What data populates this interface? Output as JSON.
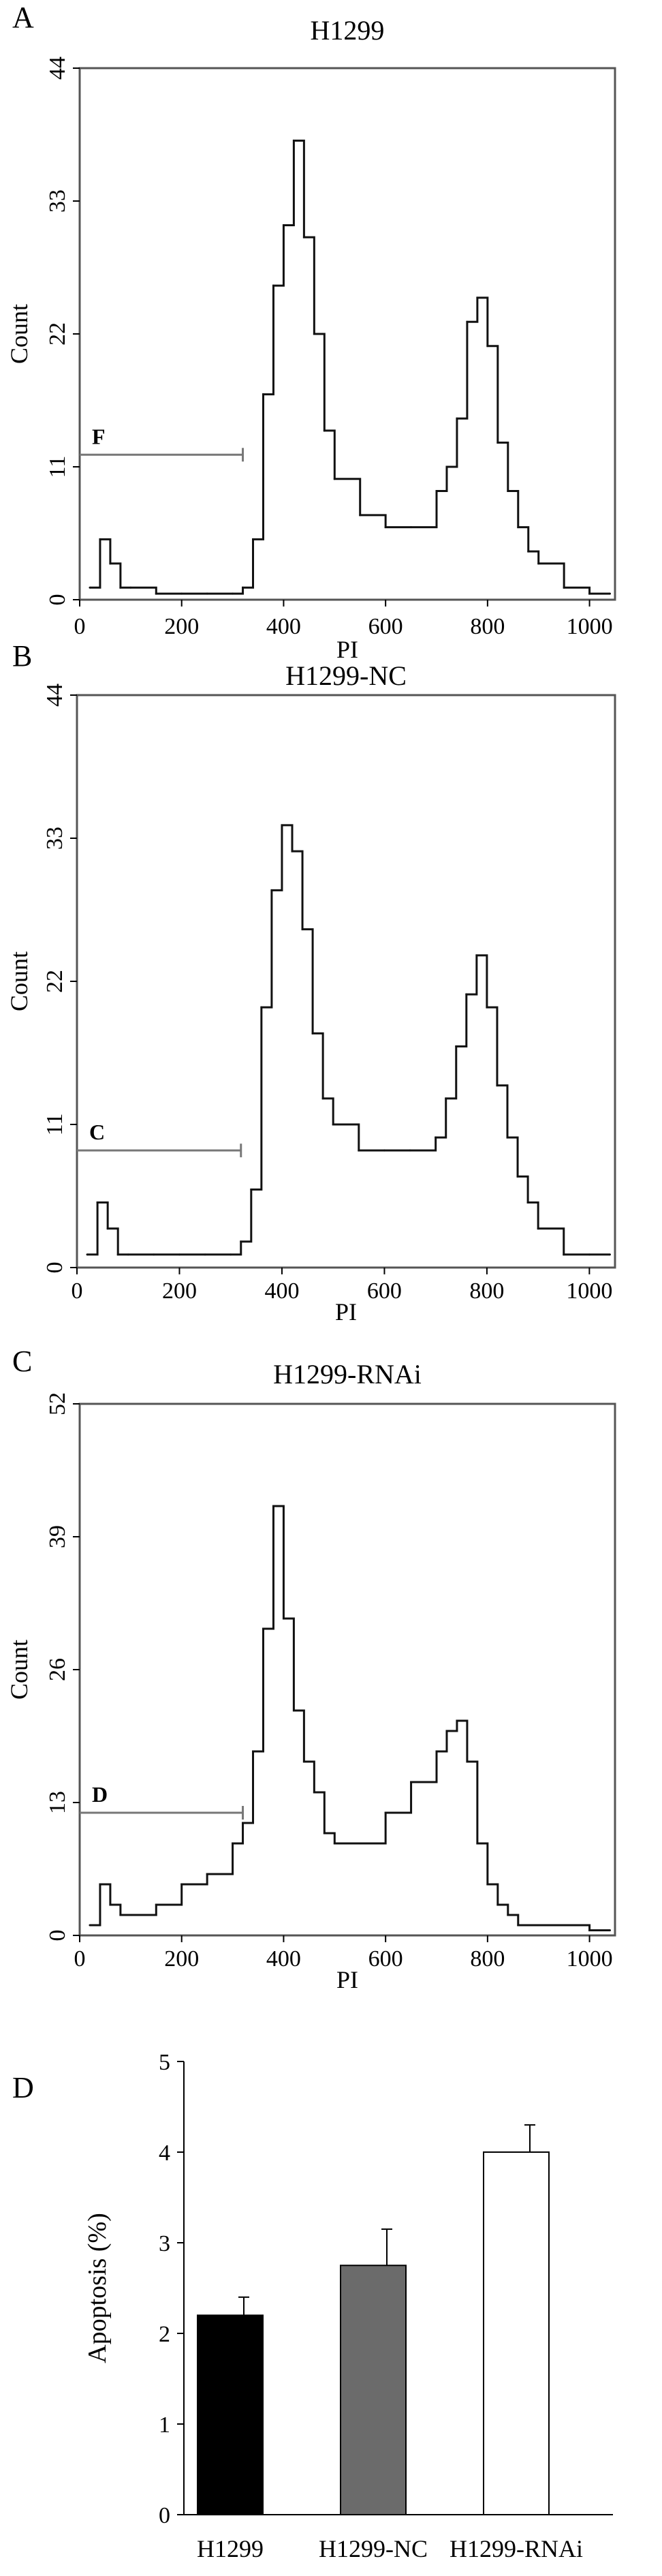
{
  "chart_data": [
    {
      "panel_label": "A",
      "type": "line",
      "title": "H1299",
      "xlabel": "PI",
      "ylabel": "Count",
      "xlim": [
        0,
        1050
      ],
      "ylim": [
        0,
        44
      ],
      "x_ticks": [
        0,
        200,
        400,
        600,
        800,
        1000
      ],
      "y_ticks": [
        0,
        11,
        22,
        33,
        44
      ],
      "gate": {
        "label": "F",
        "x_start": 0,
        "x_end": 320,
        "y": 12
      },
      "series": [
        {
          "x": [
            20,
            40,
            60,
            80,
            100,
            150,
            200,
            250,
            300,
            320,
            340,
            360,
            380,
            400,
            420,
            440,
            460,
            480,
            500,
            550,
            600,
            650,
            700,
            720,
            740,
            760,
            780,
            800,
            820,
            840,
            860,
            880,
            900,
            950,
            1000,
            1040
          ],
          "y": [
            1,
            5,
            3,
            1,
            1,
            0.5,
            0.5,
            0.5,
            0.5,
            1,
            5,
            17,
            26,
            31,
            38,
            30,
            22,
            14,
            10,
            7,
            6,
            6,
            9,
            11,
            15,
            23,
            25,
            21,
            13,
            9,
            6,
            4,
            3,
            1,
            0.5,
            0.5
          ]
        }
      ]
    },
    {
      "panel_label": "B",
      "type": "line",
      "title": "H1299-NC",
      "xlabel": "PI",
      "ylabel": "Count",
      "xlim": [
        0,
        1050
      ],
      "ylim": [
        0,
        44
      ],
      "x_ticks": [
        0,
        200,
        400,
        600,
        800,
        1000
      ],
      "y_ticks": [
        0,
        11,
        22,
        33,
        44
      ],
      "gate": {
        "label": "C",
        "x_start": 0,
        "x_end": 320,
        "y": 9
      },
      "series": [
        {
          "x": [
            20,
            40,
            60,
            80,
            100,
            150,
            200,
            250,
            300,
            320,
            340,
            360,
            380,
            400,
            420,
            440,
            460,
            480,
            500,
            550,
            600,
            650,
            700,
            720,
            740,
            760,
            780,
            800,
            820,
            840,
            860,
            880,
            900,
            950,
            1000,
            1040
          ],
          "y": [
            1,
            5,
            3,
            1,
            1,
            1,
            1,
            1,
            1,
            2,
            6,
            20,
            29,
            34,
            32,
            26,
            18,
            13,
            11,
            9,
            9,
            9,
            10,
            13,
            17,
            21,
            24,
            20,
            14,
            10,
            7,
            5,
            3,
            1,
            1,
            1
          ]
        }
      ]
    },
    {
      "panel_label": "C",
      "type": "line",
      "title": "H1299-RNAi",
      "xlabel": "PI",
      "ylabel": "Count",
      "xlim": [
        0,
        1050
      ],
      "ylim": [
        0,
        52
      ],
      "x_ticks": [
        0,
        200,
        400,
        600,
        800,
        1000
      ],
      "y_ticks": [
        0,
        13,
        26,
        39,
        52
      ],
      "gate": {
        "label": "D",
        "x_start": 0,
        "x_end": 320,
        "y": 12
      },
      "series": [
        {
          "x": [
            20,
            40,
            60,
            80,
            100,
            150,
            200,
            250,
            300,
            320,
            340,
            360,
            380,
            400,
            420,
            440,
            460,
            480,
            500,
            550,
            600,
            650,
            700,
            720,
            740,
            760,
            780,
            800,
            820,
            840,
            860,
            880,
            900,
            950,
            1000,
            1040
          ],
          "y": [
            1,
            5,
            3,
            2,
            2,
            3,
            5,
            6,
            9,
            11,
            18,
            30,
            42,
            31,
            22,
            17,
            14,
            10,
            9,
            9,
            12,
            15,
            18,
            20,
            21,
            17,
            9,
            5,
            3,
            2,
            1,
            1,
            1,
            1,
            0.5,
            0.5
          ]
        }
      ]
    },
    {
      "panel_label": "D",
      "type": "bar",
      "ylabel": "Apoptosis (%)",
      "ylim": [
        0,
        5
      ],
      "y_ticks": [
        0,
        1,
        2,
        3,
        4,
        5
      ],
      "categories": [
        "H1299",
        "H1299-NC",
        "H1299-RNAi"
      ],
      "values": [
        2.2,
        2.75,
        4.0
      ],
      "errors": [
        0.2,
        0.4,
        0.3
      ],
      "colors": [
        "#000000",
        "#6b6b6b",
        "#ffffff"
      ]
    }
  ]
}
